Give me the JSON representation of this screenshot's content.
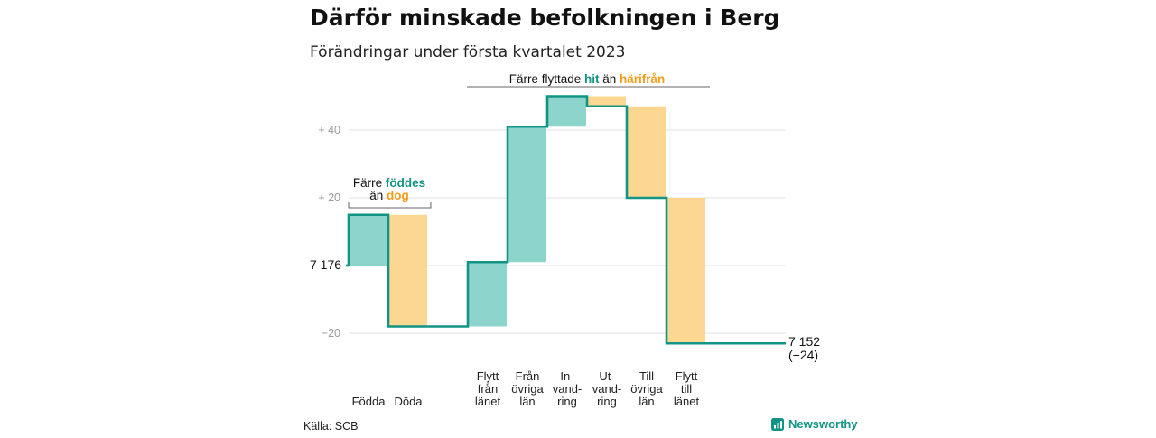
{
  "header": {
    "title": "Därför minskade befolkningen i Berg",
    "subtitle": "Förändringar under första kvartalet 2023"
  },
  "annotations": {
    "births": {
      "line1_pre": "Färre ",
      "line1_em": "föddes",
      "line2_pre": "än ",
      "line2_em": "dog"
    },
    "migration": {
      "pre": "Färre flyttade ",
      "em1": "hit",
      "mid": " än ",
      "em2": "härifrån"
    }
  },
  "footer": {
    "source": "Källa: SCB",
    "brand": "Newsworthy"
  },
  "chart_data": {
    "type": "waterfall",
    "start_value": 7176,
    "start_label": "7 176",
    "end_value": 7152,
    "end_label": "7 152",
    "end_change_label": "(−24)",
    "colors": {
      "increase": "#8dd5cc",
      "decrease": "#fbd792",
      "line": "#129484",
      "grid": "#e2e2e2"
    },
    "y_ticks": [
      {
        "value": 40,
        "label": "+ 40"
      },
      {
        "value": 20,
        "label": "+ 20"
      },
      {
        "value": -20,
        "label": "−20"
      }
    ],
    "ylim": [
      -26,
      52
    ],
    "categories": [
      {
        "label": [
          "Födda"
        ],
        "change": 15
      },
      {
        "label": [
          "Döda"
        ],
        "change": -33
      },
      {
        "label": [],
        "change": 0
      },
      {
        "label": [
          "Flytt",
          "från",
          "länet"
        ],
        "change": 19
      },
      {
        "label": [
          "Från",
          "övriga",
          "län"
        ],
        "change": 40
      },
      {
        "label": [
          "In-",
          "vand-",
          "ring"
        ],
        "change": 9
      },
      {
        "label": [
          "Ut-",
          "vand-",
          "ring"
        ],
        "change": -3
      },
      {
        "label": [
          "Till",
          "övriga",
          "län"
        ],
        "change": -27
      },
      {
        "label": [
          "Flytt",
          "till",
          "länet"
        ],
        "change": -43
      }
    ]
  }
}
